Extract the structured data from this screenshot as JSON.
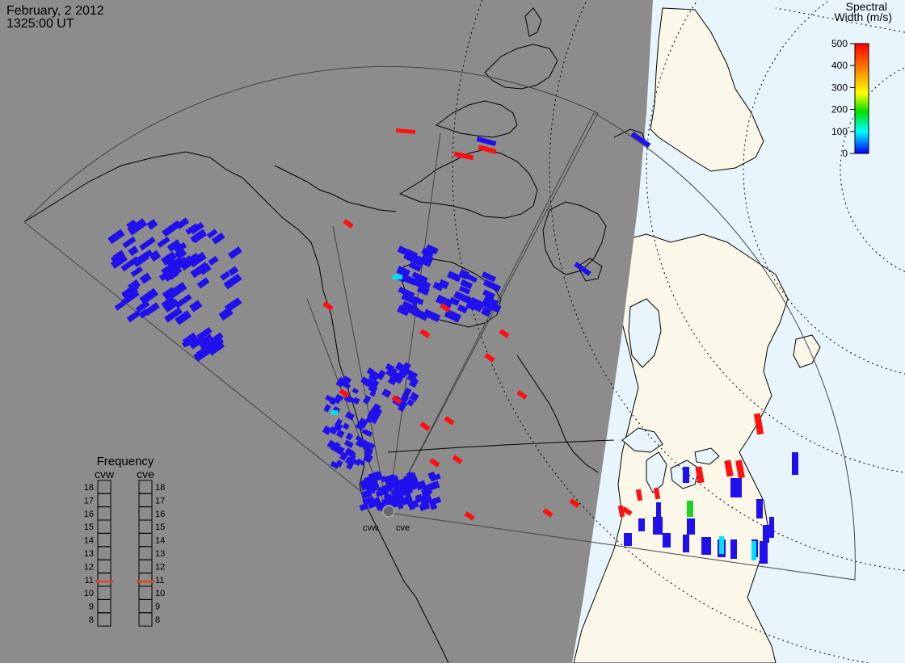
{
  "header": {
    "date": "February, 2 2012",
    "time": "1325:00 UT"
  },
  "colorbar": {
    "title_line1": "Spectral",
    "title_line2": "Width (m/s)",
    "ticks": [
      "500",
      "400",
      "300",
      "200",
      "100",
      "0"
    ],
    "stops": [
      "#ff0000",
      "#ff8c00",
      "#ffff00",
      "#00e000",
      "#00ffff",
      "#0000ff"
    ]
  },
  "frequency": {
    "title": "Frequency",
    "radars": [
      {
        "id": "cvw",
        "label": "cvw",
        "freq_mhz": 10.8
      },
      {
        "id": "cve",
        "label": "cve",
        "freq_mhz": 10.8
      }
    ],
    "scale": [
      "18",
      "17",
      "16",
      "15",
      "14",
      "13",
      "12",
      "11",
      "10",
      "9",
      "8"
    ],
    "marker_color": "#e8431a"
  },
  "radar_labels": {
    "west": "cvw",
    "east": "cve"
  },
  "colors": {
    "night": "#8c8c8c",
    "day_land": "#fbf8ea",
    "day_ocean": "#e8f5fc",
    "low_width": "#2010ee",
    "high_width": "#ff1010",
    "mid_width": "#00e0ff",
    "green_width": "#20d020"
  }
}
